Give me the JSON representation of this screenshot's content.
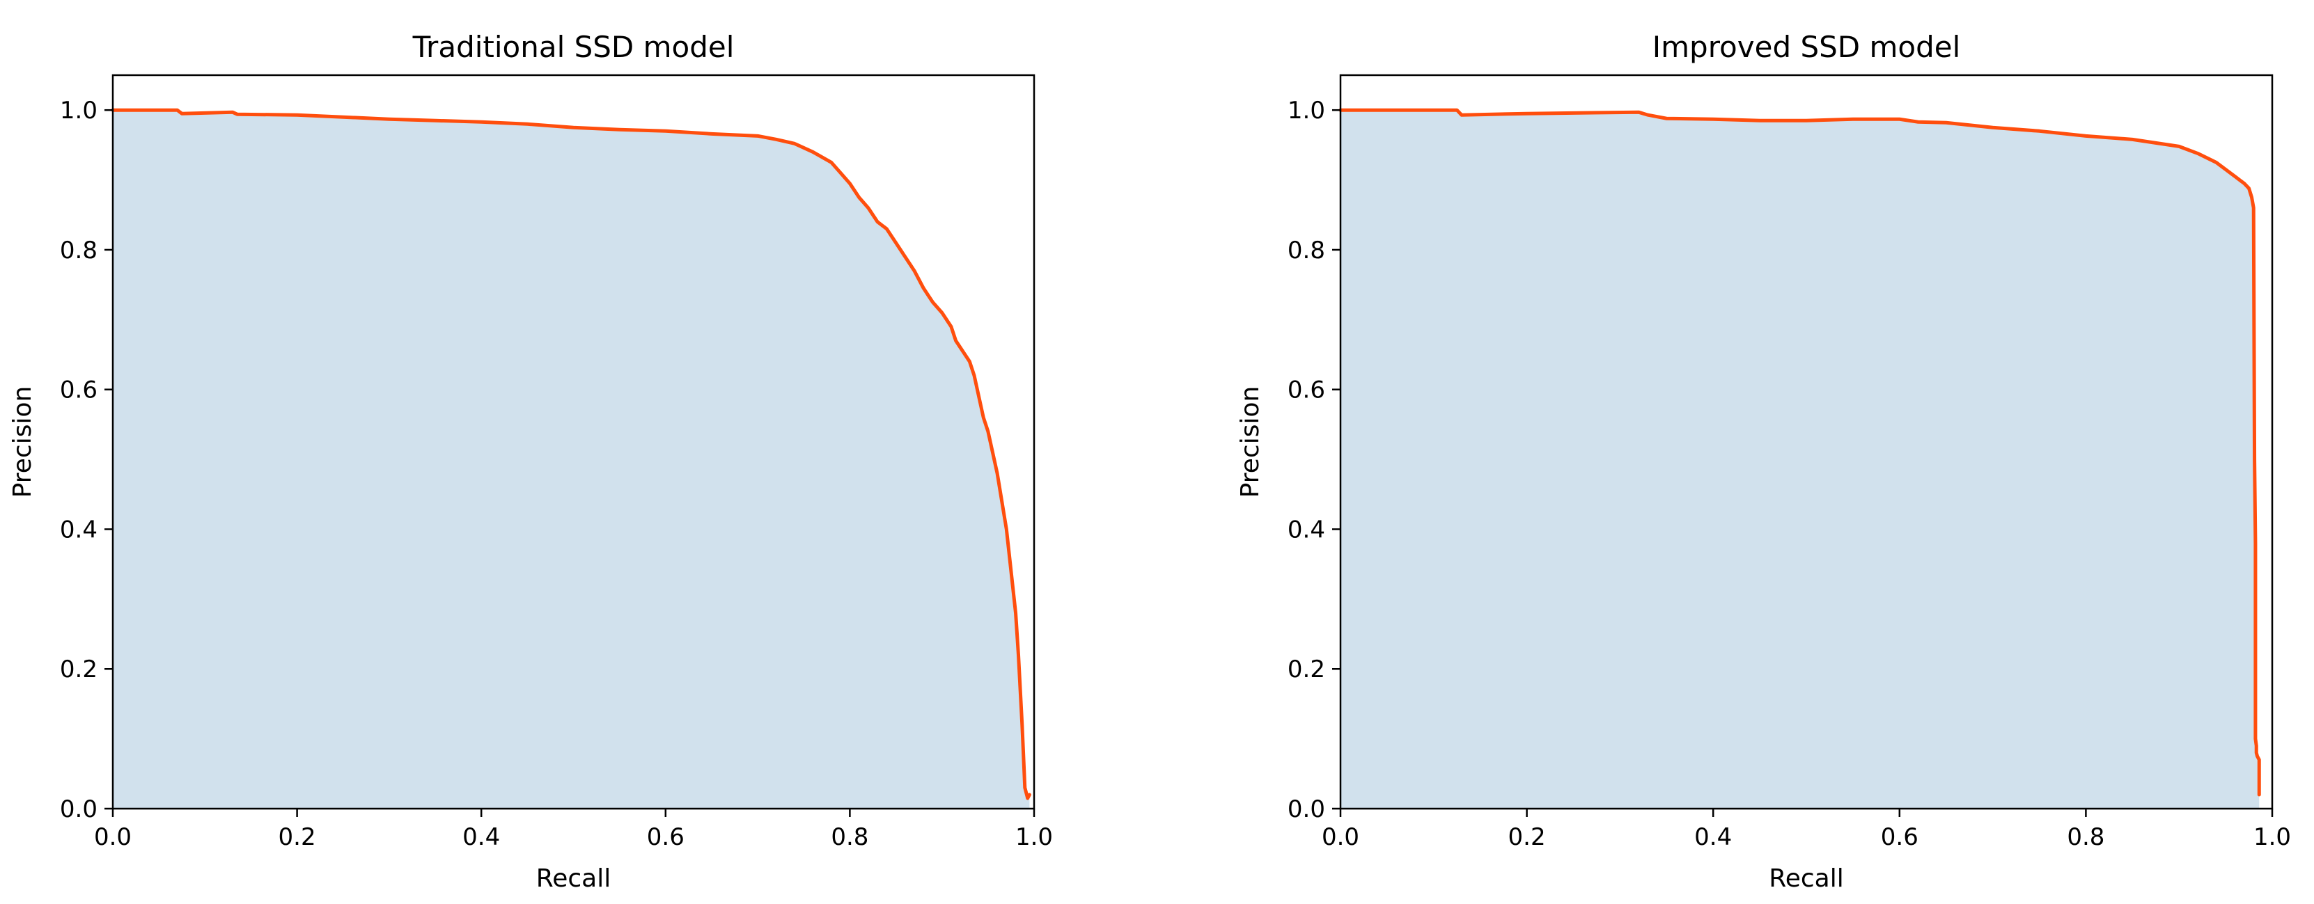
{
  "chart_data": [
    {
      "type": "area",
      "title": "Traditional SSD model",
      "xlabel": "Recall",
      "ylabel": "Precision",
      "xlim": [
        0.0,
        1.0
      ],
      "ylim": [
        0.0,
        1.05
      ],
      "xticks": [
        "0.0",
        "0.2",
        "0.4",
        "0.6",
        "0.8",
        "1.0"
      ],
      "yticks": [
        "0.0",
        "0.2",
        "0.4",
        "0.6",
        "0.8",
        "1.0"
      ],
      "grid": false,
      "fill_color": "#d1e1ed",
      "line_color": "#ff4e0d",
      "series": [
        {
          "x": [
            0.0,
            0.07,
            0.075,
            0.13,
            0.135,
            0.2,
            0.25,
            0.3,
            0.35,
            0.4,
            0.45,
            0.5,
            0.55,
            0.6,
            0.65,
            0.7,
            0.72,
            0.74,
            0.76,
            0.78,
            0.79,
            0.8,
            0.81,
            0.82,
            0.83,
            0.84,
            0.85,
            0.86,
            0.87,
            0.88,
            0.885,
            0.89,
            0.9,
            0.91,
            0.915,
            0.92,
            0.93,
            0.935,
            0.94,
            0.945,
            0.95,
            0.955,
            0.96,
            0.965,
            0.97,
            0.975,
            0.98,
            0.983,
            0.985,
            0.987,
            0.99,
            0.993,
            0.995
          ],
          "y": [
            1.0,
            1.0,
            0.995,
            0.997,
            0.994,
            0.993,
            0.99,
            0.987,
            0.985,
            0.983,
            0.98,
            0.975,
            0.972,
            0.97,
            0.966,
            0.963,
            0.958,
            0.952,
            0.94,
            0.925,
            0.91,
            0.895,
            0.875,
            0.86,
            0.84,
            0.83,
            0.81,
            0.79,
            0.77,
            0.745,
            0.735,
            0.725,
            0.71,
            0.69,
            0.67,
            0.66,
            0.64,
            0.62,
            0.59,
            0.56,
            0.54,
            0.51,
            0.48,
            0.44,
            0.4,
            0.34,
            0.28,
            0.22,
            0.17,
            0.12,
            0.03,
            0.015,
            0.02
          ]
        }
      ]
    },
    {
      "type": "area",
      "title": "Improved SSD model",
      "xlabel": "Recall",
      "ylabel": "Precision",
      "xlim": [
        0.0,
        1.0
      ],
      "ylim": [
        0.0,
        1.05
      ],
      "xticks": [
        "0.0",
        "0.2",
        "0.4",
        "0.6",
        "0.8",
        "1.0"
      ],
      "yticks": [
        "0.0",
        "0.2",
        "0.4",
        "0.6",
        "0.8",
        "1.0"
      ],
      "grid": false,
      "fill_color": "#d1e1ed",
      "line_color": "#ff4e0d",
      "series": [
        {
          "x": [
            0.0,
            0.125,
            0.13,
            0.2,
            0.32,
            0.33,
            0.35,
            0.4,
            0.45,
            0.5,
            0.55,
            0.6,
            0.62,
            0.65,
            0.7,
            0.75,
            0.8,
            0.85,
            0.9,
            0.92,
            0.94,
            0.95,
            0.96,
            0.965,
            0.97,
            0.975,
            0.978,
            0.98,
            0.981,
            0.982,
            0.982,
            0.983,
            0.983,
            0.984,
            0.986,
            0.986
          ],
          "y": [
            1.0,
            1.0,
            0.993,
            0.995,
            0.997,
            0.993,
            0.988,
            0.987,
            0.985,
            0.985,
            0.987,
            0.987,
            0.983,
            0.982,
            0.975,
            0.97,
            0.963,
            0.958,
            0.948,
            0.938,
            0.925,
            0.915,
            0.905,
            0.9,
            0.895,
            0.888,
            0.875,
            0.86,
            0.5,
            0.38,
            0.1,
            0.09,
            0.08,
            0.075,
            0.07,
            0.02
          ]
        }
      ]
    }
  ]
}
